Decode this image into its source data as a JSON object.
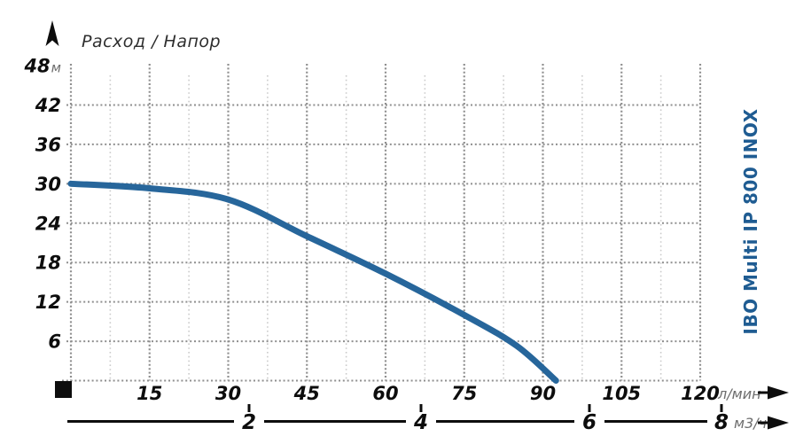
{
  "title": "Расход / Напор",
  "product_label": "IBO Multi IP 800 INOX",
  "colors": {
    "curve": "#27669B",
    "product": "#1F5C92",
    "grid_major": "#8F8F8F",
    "grid_minor": "#CBCBCB",
    "label_text": "#0D0D0D",
    "unit_text": "#6E6E6E",
    "axis_line": "#0D0D0D"
  },
  "y_axis": {
    "unit": "м"
  },
  "x_axis_primary": {
    "unit": "л/мин"
  },
  "x_axis_secondary": {
    "unit": "м3/ч"
  },
  "chart_data": {
    "type": "line",
    "title": "Расход / Напор",
    "xlabel": "л/мин",
    "x2label": "м3/ч",
    "ylabel": "м",
    "xlim": [
      0,
      120
    ],
    "ylim": [
      0,
      48
    ],
    "x_ticks": [
      15,
      30,
      45,
      60,
      75,
      90,
      105,
      120
    ],
    "x2_ticks": [
      2,
      4,
      6,
      8
    ],
    "y_ticks": [
      6,
      12,
      18,
      24,
      30,
      36,
      42,
      48
    ],
    "grid": true,
    "legend_position": "right-rotated",
    "series": [
      {
        "name": "IBO Multi IP 800 INOX",
        "x": [
          0,
          15,
          30,
          45,
          60,
          75,
          85,
          92.5
        ],
        "y": [
          30,
          29.3,
          27.6,
          22.0,
          16.3,
          10.0,
          5.3,
          0
        ]
      }
    ]
  }
}
